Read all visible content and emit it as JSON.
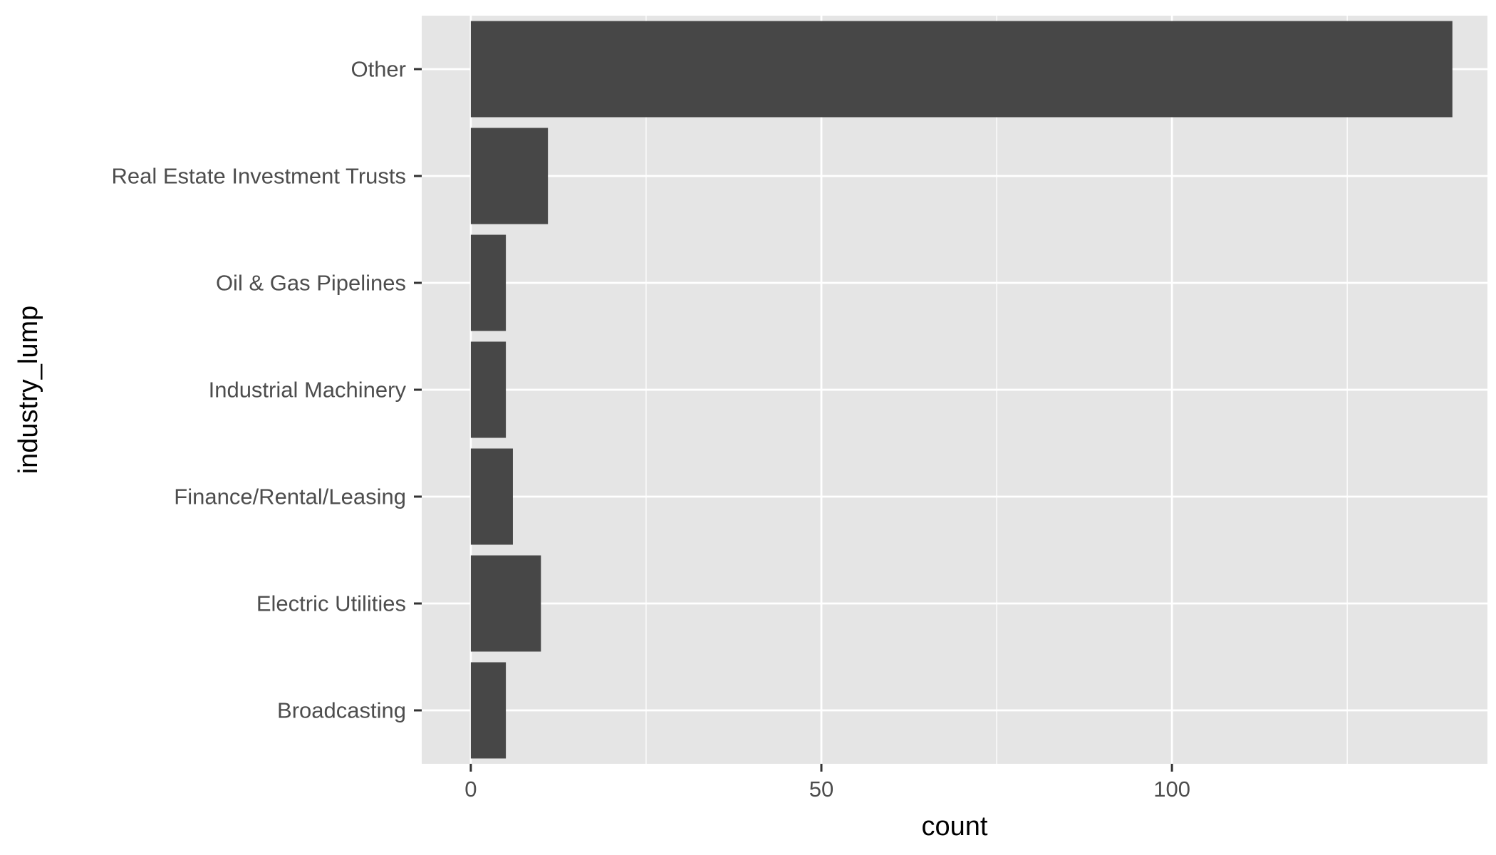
{
  "chart_data": {
    "type": "bar",
    "orientation": "horizontal",
    "xlabel": "count",
    "ylabel": "industry_lump",
    "categories": [
      "Broadcasting",
      "Electric Utilities",
      "Finance/Rental/Leasing",
      "Industrial Machinery",
      "Oil & Gas Pipelines",
      "Real Estate Investment Trusts",
      "Other"
    ],
    "values": [
      5,
      10,
      6,
      5,
      5,
      11,
      140
    ],
    "xlim": [
      -7,
      145
    ],
    "x_ticks": [
      0,
      50,
      100
    ],
    "x_tick_labels": [
      "0",
      "50",
      "100"
    ],
    "x_minor_ticks": [
      25,
      75,
      125
    ],
    "grid": true,
    "colors": {
      "bar": "#474747",
      "panel": "#e5e5e5",
      "grid": "#ffffff",
      "tick": "#333333"
    }
  }
}
